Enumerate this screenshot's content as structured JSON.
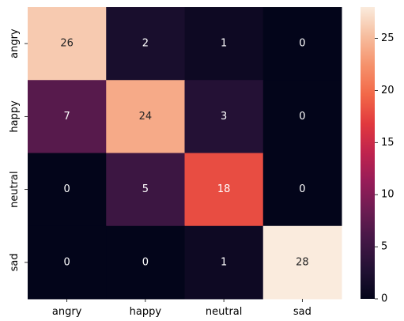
{
  "chart_data": {
    "type": "heatmap",
    "title": "",
    "xlabel": "",
    "ylabel": "",
    "x_labels": [
      "angry",
      "happy",
      "neutral",
      "sad"
    ],
    "y_labels": [
      "angry",
      "happy",
      "neutral",
      "sad"
    ],
    "values": [
      [
        26,
        2,
        1,
        0
      ],
      [
        7,
        24,
        3,
        0
      ],
      [
        0,
        5,
        18,
        0
      ],
      [
        0,
        0,
        1,
        28
      ]
    ],
    "vmin": 0,
    "vmax": 28,
    "colorbar_ticks": [
      0,
      5,
      10,
      15,
      20,
      25
    ],
    "colormap": "rocket",
    "annotation_colors": {
      "light": "#ffffff",
      "dark": "#262626"
    }
  }
}
